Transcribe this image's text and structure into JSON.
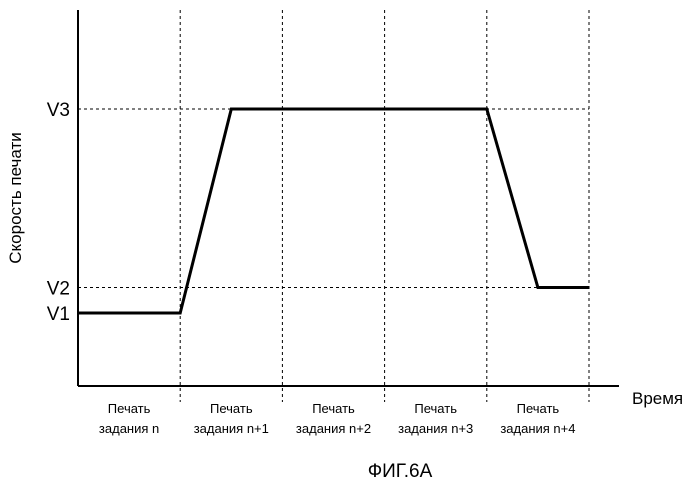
{
  "chart_data": {
    "type": "line",
    "title": "",
    "caption": "ФИГ.6А",
    "xlabel": "Время",
    "ylabel": "Скорость печати",
    "y_ticks": [
      {
        "label": "V1",
        "value": 1
      },
      {
        "label": "V2",
        "value": 1.15
      },
      {
        "label": "V3",
        "value": 2.2
      }
    ],
    "y_reference_lines": [
      "V2",
      "V3"
    ],
    "ylim": [
      0.6,
      2.6
    ],
    "xlim": [
      0,
      5
    ],
    "x_gridlines": [
      1,
      2,
      3,
      4
    ],
    "x_grid_extends_above": [
      0,
      1,
      2,
      3,
      4,
      5
    ],
    "categories": [
      [
        "Печать",
        "задания n"
      ],
      [
        "Печать",
        "задания n+1"
      ],
      [
        "Печать",
        "задания n+2"
      ],
      [
        "Печать",
        "задания n+3"
      ],
      [
        "Печать",
        "задания n+4"
      ]
    ],
    "series": [
      {
        "x": [
          0,
          1,
          1.5,
          4,
          4.5,
          5
        ],
        "y": [
          1,
          1,
          2.2,
          2.2,
          1.15,
          1.15
        ]
      }
    ],
    "grid": true,
    "legend": "none"
  }
}
